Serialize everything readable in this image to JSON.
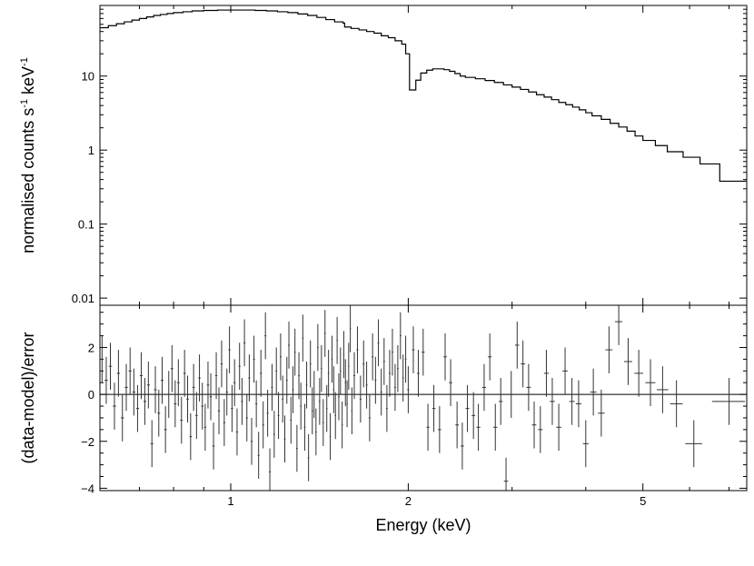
{
  "chart_data": [
    {
      "type": "line",
      "panel": "top",
      "xlabel": "",
      "ylabel": "normalised counts s",
      "ylabel_sup1": "-1",
      "ylabel_mid": " keV",
      "ylabel_sup2": "-1",
      "x_scale": "log",
      "y_scale": "log",
      "xlim": [
        0.6,
        7.5
      ],
      "ylim": [
        0.008,
        90
      ],
      "yticks": [
        {
          "value": 0.01,
          "label": "0.01"
        },
        {
          "value": 0.1,
          "label": "0.1"
        },
        {
          "value": 1,
          "label": "1"
        },
        {
          "value": 10,
          "label": "10"
        }
      ],
      "series": [
        {
          "style": "step",
          "x": [
            0.6,
            0.62,
            0.64,
            0.66,
            0.68,
            0.7,
            0.72,
            0.74,
            0.76,
            0.78,
            0.8,
            0.83,
            0.86,
            0.9,
            0.95,
            1.0,
            1.05,
            1.1,
            1.15,
            1.2,
            1.25,
            1.3,
            1.35,
            1.4,
            1.45,
            1.5,
            1.55,
            1.56,
            1.6,
            1.65,
            1.7,
            1.75,
            1.8,
            1.85,
            1.9,
            1.95,
            1.98,
            2.01,
            2.06,
            2.1,
            2.15,
            2.2,
            2.25,
            2.3,
            2.35,
            2.4,
            2.45,
            2.5,
            2.6,
            2.7,
            2.8,
            2.9,
            3.0,
            3.1,
            3.2,
            3.3,
            3.4,
            3.5,
            3.6,
            3.7,
            3.8,
            3.9,
            4.0,
            4.1,
            4.25,
            4.4,
            4.55,
            4.7,
            4.85,
            5.0,
            5.25,
            5.5,
            5.85,
            6.25,
            6.75,
            7.5
          ],
          "y": [
            45,
            48,
            51,
            54,
            57,
            60,
            63,
            66,
            68,
            70,
            72,
            74,
            76,
            77,
            78,
            78,
            78,
            77,
            76,
            74,
            72,
            69,
            66,
            62,
            58,
            54,
            52,
            46,
            44,
            42,
            40,
            38,
            35,
            33,
            30,
            27,
            20,
            6.5,
            8.8,
            11,
            12,
            12.5,
            12.5,
            12.2,
            11.6,
            10.8,
            10,
            9.6,
            9.2,
            8.7,
            8.2,
            7.6,
            7.1,
            6.6,
            6.1,
            5.6,
            5.2,
            4.8,
            4.4,
            4.1,
            3.8,
            3.5,
            3.2,
            2.9,
            2.6,
            2.3,
            2.05,
            1.8,
            1.55,
            1.35,
            1.15,
            0.95,
            0.8,
            0.65,
            0.38,
            0.38
          ]
        }
      ]
    },
    {
      "type": "scatter",
      "panel": "bottom",
      "xlabel": "Energy (keV)",
      "ylabel": "(data-model)/error",
      "x_scale": "log",
      "xlim": [
        0.6,
        7.5
      ],
      "ylim": [
        -4.1,
        3.8
      ],
      "xticks": [
        {
          "value": 1,
          "label": "1"
        },
        {
          "value": 2,
          "label": "2"
        },
        {
          "value": 5,
          "label": "5"
        }
      ],
      "yticks": [
        {
          "value": -4,
          "label": "−4"
        },
        {
          "value": -2,
          "label": "−2"
        },
        {
          "value": 0,
          "label": "0"
        },
        {
          "value": 2,
          "label": "2"
        }
      ],
      "reference_line": 0,
      "points": [
        {
          "x": 0.605,
          "y": 1.5,
          "xerr": 0.004
        },
        {
          "x": 0.615,
          "y": 0.6,
          "xerr": 0.004
        },
        {
          "x": 0.625,
          "y": 1.2,
          "xerr": 0.004
        },
        {
          "x": 0.635,
          "y": -0.5,
          "xerr": 0.004
        },
        {
          "x": 0.645,
          "y": 0.9,
          "xerr": 0.004
        },
        {
          "x": 0.655,
          "y": -1.0,
          "xerr": 0.004
        },
        {
          "x": 0.665,
          "y": 0.3,
          "xerr": 0.004
        },
        {
          "x": 0.675,
          "y": 1.0,
          "xerr": 0.004
        },
        {
          "x": 0.685,
          "y": 0.1,
          "xerr": 0.004
        },
        {
          "x": 0.695,
          "y": -0.6,
          "xerr": 0.004
        },
        {
          "x": 0.705,
          "y": 0.8,
          "xerr": 0.004
        },
        {
          "x": 0.715,
          "y": -0.3,
          "xerr": 0.004
        },
        {
          "x": 0.725,
          "y": 0.4,
          "xerr": 0.004
        },
        {
          "x": 0.735,
          "y": -2.1,
          "xerr": 0.004
        },
        {
          "x": 0.745,
          "y": 0.2,
          "xerr": 0.004
        },
        {
          "x": 0.755,
          "y": -0.8,
          "xerr": 0.004
        },
        {
          "x": 0.765,
          "y": 0.6,
          "xerr": 0.004
        },
        {
          "x": 0.775,
          "y": -1.5,
          "xerr": 0.004
        },
        {
          "x": 0.785,
          "y": 0.0,
          "xerr": 0.004
        },
        {
          "x": 0.795,
          "y": 1.1,
          "xerr": 0.004
        },
        {
          "x": 0.805,
          "y": -0.4,
          "xerr": 0.004
        },
        {
          "x": 0.815,
          "y": 0.5,
          "xerr": 0.004
        },
        {
          "x": 0.825,
          "y": -1.1,
          "xerr": 0.004
        },
        {
          "x": 0.835,
          "y": 0.9,
          "xerr": 0.004
        },
        {
          "x": 0.845,
          "y": -0.2,
          "xerr": 0.004
        },
        {
          "x": 0.855,
          "y": -1.8,
          "xerr": 0.004
        },
        {
          "x": 0.865,
          "y": 0.3,
          "xerr": 0.004
        },
        {
          "x": 0.875,
          "y": -0.9,
          "xerr": 0.004
        },
        {
          "x": 0.885,
          "y": 0.7,
          "xerr": 0.004
        },
        {
          "x": 0.895,
          "y": -0.5,
          "xerr": 0.004
        },
        {
          "x": 0.905,
          "y": -1.4,
          "xerr": 0.004
        },
        {
          "x": 0.915,
          "y": 0.4,
          "xerr": 0.004
        },
        {
          "x": 0.925,
          "y": -0.1,
          "xerr": 0.004
        },
        {
          "x": 0.935,
          "y": -2.2,
          "xerr": 0.004
        },
        {
          "x": 0.945,
          "y": 0.8,
          "xerr": 0.004
        },
        {
          "x": 0.955,
          "y": -0.7,
          "xerr": 0.004
        },
        {
          "x": 0.965,
          "y": 1.3,
          "xerr": 0.004
        },
        {
          "x": 0.975,
          "y": -1.2,
          "xerr": 0.004
        },
        {
          "x": 0.985,
          "y": 0.1,
          "xerr": 0.004
        },
        {
          "x": 0.995,
          "y": 1.9,
          "xerr": 0.004
        },
        {
          "x": 1.005,
          "y": -0.6,
          "xerr": 0.004
        },
        {
          "x": 1.015,
          "y": 0.5,
          "xerr": 0.004
        },
        {
          "x": 1.025,
          "y": -1.6,
          "xerr": 0.004
        },
        {
          "x": 1.035,
          "y": 1.2,
          "xerr": 0.004
        },
        {
          "x": 1.045,
          "y": -0.3,
          "xerr": 0.004
        },
        {
          "x": 1.055,
          "y": 2.2,
          "xerr": 0.004
        },
        {
          "x": 1.065,
          "y": -1.0,
          "xerr": 0.004
        },
        {
          "x": 1.075,
          "y": 0.7,
          "xerr": 0.004
        },
        {
          "x": 1.085,
          "y": -2.0,
          "xerr": 0.004
        },
        {
          "x": 1.095,
          "y": 1.5,
          "xerr": 0.004
        },
        {
          "x": 1.105,
          "y": -0.4,
          "xerr": 0.004
        },
        {
          "x": 1.115,
          "y": -2.6,
          "xerr": 0.004
        },
        {
          "x": 1.125,
          "y": 0.9,
          "xerr": 0.004
        },
        {
          "x": 1.135,
          "y": -1.3,
          "xerr": 0.004
        },
        {
          "x": 1.145,
          "y": 2.5,
          "xerr": 0.004
        },
        {
          "x": 1.155,
          "y": -0.8,
          "xerr": 0.004
        },
        {
          "x": 1.165,
          "y": -3.3,
          "xerr": 0.004
        },
        {
          "x": 1.175,
          "y": 0.3,
          "xerr": 0.004
        },
        {
          "x": 1.185,
          "y": -1.7,
          "xerr": 0.004
        },
        {
          "x": 1.195,
          "y": 1.0,
          "xerr": 0.004
        },
        {
          "x": 1.205,
          "y": -0.9,
          "xerr": 0.004
        },
        {
          "x": 1.215,
          "y": 1.6,
          "xerr": 0.004
        },
        {
          "x": 1.225,
          "y": -0.2,
          "xerr": 0.004
        },
        {
          "x": 1.235,
          "y": -1.9,
          "xerr": 0.004
        },
        {
          "x": 1.245,
          "y": 0.6,
          "xerr": 0.004
        },
        {
          "x": 1.255,
          "y": 2.1,
          "xerr": 0.004
        },
        {
          "x": 1.265,
          "y": -1.1,
          "xerr": 0.004
        },
        {
          "x": 1.275,
          "y": 0.2,
          "xerr": 0.004
        },
        {
          "x": 1.285,
          "y": 1.8,
          "xerr": 0.004
        },
        {
          "x": 1.295,
          "y": -2.3,
          "xerr": 0.004
        },
        {
          "x": 1.305,
          "y": 0.8,
          "xerr": 0.004
        },
        {
          "x": 1.315,
          "y": -0.5,
          "xerr": 0.004
        },
        {
          "x": 1.325,
          "y": 2.4,
          "xerr": 0.004
        },
        {
          "x": 1.335,
          "y": -1.4,
          "xerr": 0.004
        },
        {
          "x": 1.345,
          "y": 0.4,
          "xerr": 0.004
        },
        {
          "x": 1.355,
          "y": -2.7,
          "xerr": 0.004
        },
        {
          "x": 1.365,
          "y": 1.3,
          "xerr": 0.004
        },
        {
          "x": 1.375,
          "y": -0.7,
          "xerr": 0.004
        },
        {
          "x": 1.385,
          "y": 0.0,
          "xerr": 0.004
        },
        {
          "x": 1.395,
          "y": -1.6,
          "xerr": 0.004
        },
        {
          "x": 1.405,
          "y": 2.0,
          "xerr": 0.004
        },
        {
          "x": 1.415,
          "y": -0.3,
          "xerr": 0.004
        },
        {
          "x": 1.425,
          "y": 1.1,
          "xerr": 0.004
        },
        {
          "x": 1.435,
          "y": -1.2,
          "xerr": 0.004
        },
        {
          "x": 1.445,
          "y": 2.6,
          "xerr": 0.004
        },
        {
          "x": 1.455,
          "y": -0.6,
          "xerr": 0.004
        },
        {
          "x": 1.465,
          "y": 0.9,
          "xerr": 0.004
        },
        {
          "x": 1.475,
          "y": -1.8,
          "xerr": 0.004
        },
        {
          "x": 1.485,
          "y": 1.5,
          "xerr": 0.004
        },
        {
          "x": 1.495,
          "y": 0.2,
          "xerr": 0.004
        },
        {
          "x": 1.505,
          "y": -0.9,
          "xerr": 0.004
        },
        {
          "x": 1.515,
          "y": 2.3,
          "xerr": 0.004
        },
        {
          "x": 1.525,
          "y": -0.1,
          "xerr": 0.004
        },
        {
          "x": 1.535,
          "y": 1.0,
          "xerr": 0.004
        },
        {
          "x": 1.545,
          "y": -1.3,
          "xerr": 0.004
        },
        {
          "x": 1.555,
          "y": 1.7,
          "xerr": 0.004
        },
        {
          "x": 1.565,
          "y": 0.5,
          "xerr": 0.004
        },
        {
          "x": 1.575,
          "y": -0.4,
          "xerr": 0.004
        },
        {
          "x": 1.585,
          "y": 1.2,
          "xerr": 0.004
        },
        {
          "x": 1.595,
          "y": 2.8,
          "xerr": 0.004
        },
        {
          "x": 1.605,
          "y": -0.7,
          "xerr": 0.004
        },
        {
          "x": 1.62,
          "y": 0.8,
          "xerr": 0.006
        },
        {
          "x": 1.64,
          "y": 1.9,
          "xerr": 0.006
        },
        {
          "x": 1.66,
          "y": -0.2,
          "xerr": 0.006
        },
        {
          "x": 1.68,
          "y": 1.3,
          "xerr": 0.006
        },
        {
          "x": 1.7,
          "y": 0.4,
          "xerr": 0.006
        },
        {
          "x": 1.72,
          "y": -1.0,
          "xerr": 0.006
        },
        {
          "x": 1.74,
          "y": 1.6,
          "xerr": 0.006
        },
        {
          "x": 1.76,
          "y": 0.6,
          "xerr": 0.006
        },
        {
          "x": 1.78,
          "y": 2.2,
          "xerr": 0.006
        },
        {
          "x": 1.8,
          "y": 0.1,
          "xerr": 0.006
        },
        {
          "x": 1.82,
          "y": 1.4,
          "xerr": 0.006
        },
        {
          "x": 1.84,
          "y": -0.6,
          "xerr": 0.006
        },
        {
          "x": 1.86,
          "y": 0.9,
          "xerr": 0.006
        },
        {
          "x": 1.88,
          "y": 1.8,
          "xerr": 0.006
        },
        {
          "x": 1.9,
          "y": 0.3,
          "xerr": 0.006
        },
        {
          "x": 1.92,
          "y": 1.1,
          "xerr": 0.006
        },
        {
          "x": 1.94,
          "y": 2.5,
          "xerr": 0.006
        },
        {
          "x": 1.96,
          "y": 0.7,
          "xerr": 0.006
        },
        {
          "x": 1.98,
          "y": 1.5,
          "xerr": 0.006
        },
        {
          "x": 2.0,
          "y": 0.2,
          "xerr": 0.008
        },
        {
          "x": 2.04,
          "y": 1.9,
          "xerr": 0.01
        },
        {
          "x": 2.08,
          "y": 0.9,
          "xerr": 0.01
        },
        {
          "x": 2.12,
          "y": 1.8,
          "xerr": 0.012
        },
        {
          "x": 2.16,
          "y": -1.4,
          "xerr": 0.012
        },
        {
          "x": 2.21,
          "y": -0.6,
          "xerr": 0.014
        },
        {
          "x": 2.26,
          "y": -1.5,
          "xerr": 0.014
        },
        {
          "x": 2.31,
          "y": 1.6,
          "xerr": 0.015
        },
        {
          "x": 2.36,
          "y": 0.5,
          "xerr": 0.015
        },
        {
          "x": 2.42,
          "y": -1.3,
          "xerr": 0.016
        },
        {
          "x": 2.47,
          "y": -2.2,
          "xerr": 0.016
        },
        {
          "x": 2.52,
          "y": -0.6,
          "xerr": 0.018
        },
        {
          "x": 2.58,
          "y": -0.9,
          "xerr": 0.018
        },
        {
          "x": 2.63,
          "y": -1.4,
          "xerr": 0.02
        },
        {
          "x": 2.69,
          "y": 0.3,
          "xerr": 0.02
        },
        {
          "x": 2.75,
          "y": 1.6,
          "xerr": 0.02
        },
        {
          "x": 2.81,
          "y": -1.4,
          "xerr": 0.022
        },
        {
          "x": 2.87,
          "y": -0.3,
          "xerr": 0.022
        },
        {
          "x": 2.93,
          "y": -3.7,
          "xerr": 0.024
        },
        {
          "x": 2.99,
          "y": 0.0,
          "xerr": 0.024
        },
        {
          "x": 3.06,
          "y": 2.1,
          "xerr": 0.025
        },
        {
          "x": 3.13,
          "y": 1.3,
          "xerr": 0.026
        },
        {
          "x": 3.2,
          "y": 0.3,
          "xerr": 0.028
        },
        {
          "x": 3.27,
          "y": -1.3,
          "xerr": 0.028
        },
        {
          "x": 3.35,
          "y": -1.5,
          "xerr": 0.03
        },
        {
          "x": 3.43,
          "y": 0.9,
          "xerr": 0.032
        },
        {
          "x": 3.51,
          "y": -0.3,
          "xerr": 0.034
        },
        {
          "x": 3.6,
          "y": -1.4,
          "xerr": 0.036
        },
        {
          "x": 3.69,
          "y": 1.0,
          "xerr": 0.038
        },
        {
          "x": 3.79,
          "y": -0.3,
          "xerr": 0.04
        },
        {
          "x": 3.89,
          "y": -0.4,
          "xerr": 0.042
        },
        {
          "x": 4.0,
          "y": -2.1,
          "xerr": 0.045
        },
        {
          "x": 4.12,
          "y": 0.1,
          "xerr": 0.05
        },
        {
          "x": 4.25,
          "y": -0.8,
          "xerr": 0.055
        },
        {
          "x": 4.38,
          "y": 1.9,
          "xerr": 0.06
        },
        {
          "x": 4.55,
          "y": 3.1,
          "xerr": 0.065
        },
        {
          "x": 4.72,
          "y": 1.4,
          "xerr": 0.075
        },
        {
          "x": 4.92,
          "y": 0.9,
          "xerr": 0.085
        },
        {
          "x": 5.15,
          "y": 0.5,
          "xerr": 0.1
        },
        {
          "x": 5.4,
          "y": 0.2,
          "xerr": 0.12
        },
        {
          "x": 5.7,
          "y": -0.4,
          "xerr": 0.14
        },
        {
          "x": 6.1,
          "y": -2.1,
          "xerr": 0.2
        },
        {
          "x": 7.0,
          "y": -0.3,
          "xerr": 0.45
        }
      ]
    }
  ]
}
